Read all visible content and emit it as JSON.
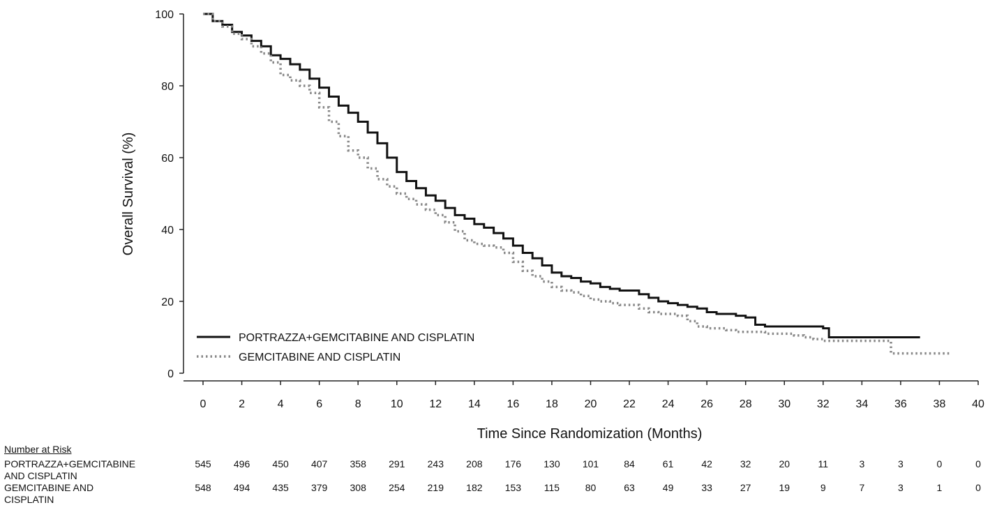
{
  "chart_data": {
    "type": "line",
    "title": "",
    "xlabel": "Time Since Randomization (Months)",
    "ylabel": "Overall Survival (%)",
    "xlim": [
      0,
      40
    ],
    "ylim": [
      0,
      100
    ],
    "x_ticks": [
      "0",
      "2",
      "4",
      "6",
      "8",
      "10",
      "12",
      "14",
      "16",
      "18",
      "20",
      "22",
      "24",
      "26",
      "28",
      "30",
      "32",
      "34",
      "36",
      "38",
      "40"
    ],
    "y_ticks": [
      "0",
      "20",
      "40",
      "60",
      "80",
      "100"
    ],
    "grid": false,
    "legend_position": "bottom-left",
    "series": [
      {
        "name": "PORTRAZZA+GEMCITABINE AND CISPLATIN",
        "style": "solid",
        "color": "#111111",
        "points": [
          [
            0,
            100
          ],
          [
            0.5,
            98
          ],
          [
            1,
            97
          ],
          [
            1.5,
            95
          ],
          [
            2,
            94
          ],
          [
            2.5,
            92.5
          ],
          [
            3,
            91
          ],
          [
            3.5,
            88.5
          ],
          [
            4,
            87.5
          ],
          [
            4.5,
            86
          ],
          [
            5,
            84.5
          ],
          [
            5.5,
            82
          ],
          [
            6,
            79.5
          ],
          [
            6.5,
            77
          ],
          [
            7,
            74.5
          ],
          [
            7.5,
            72.5
          ],
          [
            8,
            70
          ],
          [
            8.5,
            67
          ],
          [
            9,
            64
          ],
          [
            9.5,
            60
          ],
          [
            10,
            56
          ],
          [
            10.5,
            53.5
          ],
          [
            11,
            51.5
          ],
          [
            11.5,
            49.5
          ],
          [
            12,
            48
          ],
          [
            12.5,
            46
          ],
          [
            13,
            44
          ],
          [
            13.5,
            43
          ],
          [
            14,
            41.5
          ],
          [
            14.5,
            40.5
          ],
          [
            15,
            39
          ],
          [
            15.5,
            37.5
          ],
          [
            16,
            35.5
          ],
          [
            16.5,
            33.5
          ],
          [
            17,
            32
          ],
          [
            17.5,
            30
          ],
          [
            18,
            28
          ],
          [
            18.5,
            27
          ],
          [
            19,
            26.5
          ],
          [
            19.5,
            25.5
          ],
          [
            20,
            25
          ],
          [
            20.5,
            24
          ],
          [
            21,
            23.5
          ],
          [
            21.5,
            23
          ],
          [
            22,
            23
          ],
          [
            22.5,
            22
          ],
          [
            23,
            21
          ],
          [
            23.5,
            20
          ],
          [
            24,
            19.5
          ],
          [
            24.5,
            19
          ],
          [
            25,
            18.5
          ],
          [
            25.5,
            18
          ],
          [
            26,
            17
          ],
          [
            26.5,
            16.5
          ],
          [
            27,
            16.5
          ],
          [
            27.5,
            16
          ],
          [
            28,
            15.5
          ],
          [
            28.5,
            13.5
          ],
          [
            29,
            13
          ],
          [
            30,
            13
          ],
          [
            31,
            13
          ],
          [
            32,
            12.5
          ],
          [
            32.3,
            10
          ],
          [
            33,
            10
          ],
          [
            34,
            10
          ],
          [
            35,
            10
          ],
          [
            36,
            10
          ],
          [
            37,
            10
          ]
        ]
      },
      {
        "name": "GEMCITABINE AND CISPLATIN",
        "style": "dotted",
        "color": "#888888",
        "points": [
          [
            0,
            100
          ],
          [
            0.5,
            98
          ],
          [
            1,
            96.5
          ],
          [
            1.5,
            94.5
          ],
          [
            2,
            93
          ],
          [
            2.5,
            91
          ],
          [
            3,
            89
          ],
          [
            3.5,
            86.5
          ],
          [
            4,
            83
          ],
          [
            4.5,
            81.5
          ],
          [
            5,
            80
          ],
          [
            5.5,
            78
          ],
          [
            6,
            74
          ],
          [
            6.5,
            70
          ],
          [
            7,
            66
          ],
          [
            7.5,
            62
          ],
          [
            8,
            60
          ],
          [
            8.5,
            57
          ],
          [
            9,
            54
          ],
          [
            9.5,
            52
          ],
          [
            10,
            50
          ],
          [
            10.5,
            48.5
          ],
          [
            11,
            47
          ],
          [
            11.5,
            45.5
          ],
          [
            12,
            44
          ],
          [
            12.5,
            42
          ],
          [
            13,
            39.5
          ],
          [
            13.5,
            37
          ],
          [
            14,
            36
          ],
          [
            14.5,
            35.5
          ],
          [
            15,
            35
          ],
          [
            15.5,
            33.5
          ],
          [
            16,
            31
          ],
          [
            16.5,
            28.5
          ],
          [
            17,
            27
          ],
          [
            17.5,
            25.5
          ],
          [
            18,
            24
          ],
          [
            18.5,
            23
          ],
          [
            19,
            22.5
          ],
          [
            19.5,
            21.5
          ],
          [
            20,
            20.5
          ],
          [
            20.5,
            20
          ],
          [
            21,
            19.5
          ],
          [
            21.5,
            19
          ],
          [
            22,
            19
          ],
          [
            22.5,
            18
          ],
          [
            23,
            17
          ],
          [
            23.5,
            16.5
          ],
          [
            24,
            16.5
          ],
          [
            24.5,
            16
          ],
          [
            25,
            14.5
          ],
          [
            25.5,
            13
          ],
          [
            26,
            12.5
          ],
          [
            26.5,
            12.5
          ],
          [
            27,
            12
          ],
          [
            27.5,
            11.5
          ],
          [
            28,
            11.5
          ],
          [
            28.5,
            11.5
          ],
          [
            29,
            11
          ],
          [
            30,
            11
          ],
          [
            30.5,
            10.5
          ],
          [
            31,
            10
          ],
          [
            31.5,
            9.5
          ],
          [
            32,
            9
          ],
          [
            33,
            9
          ],
          [
            34,
            9
          ],
          [
            35,
            9
          ],
          [
            35.5,
            5.5
          ],
          [
            36,
            5.5
          ],
          [
            37,
            5.5
          ],
          [
            38,
            5.5
          ],
          [
            38.5,
            5.5
          ]
        ]
      }
    ],
    "legend": [
      {
        "label": "PORTRAZZA+GEMCITABINE AND CISPLATIN",
        "style": "solid"
      },
      {
        "label": "GEMCITABINE AND CISPLATIN",
        "style": "dotted"
      }
    ]
  },
  "risk_table": {
    "title": "Number at Risk",
    "rows": [
      {
        "label_line1": "PORTRAZZA+GEMCITABINE",
        "label_line2": "AND CISPLATIN",
        "values": [
          "545",
          "496",
          "450",
          "407",
          "358",
          "291",
          "243",
          "208",
          "176",
          "130",
          "101",
          "84",
          "61",
          "42",
          "32",
          "20",
          "11",
          "3",
          "3",
          "0",
          "0"
        ]
      },
      {
        "label_line1": "GEMCITABINE AND",
        "label_line2": "CISPLATIN",
        "values": [
          "548",
          "494",
          "435",
          "379",
          "308",
          "254",
          "219",
          "182",
          "153",
          "115",
          "80",
          "63",
          "49",
          "33",
          "27",
          "19",
          "9",
          "7",
          "3",
          "1",
          "0"
        ]
      }
    ]
  }
}
